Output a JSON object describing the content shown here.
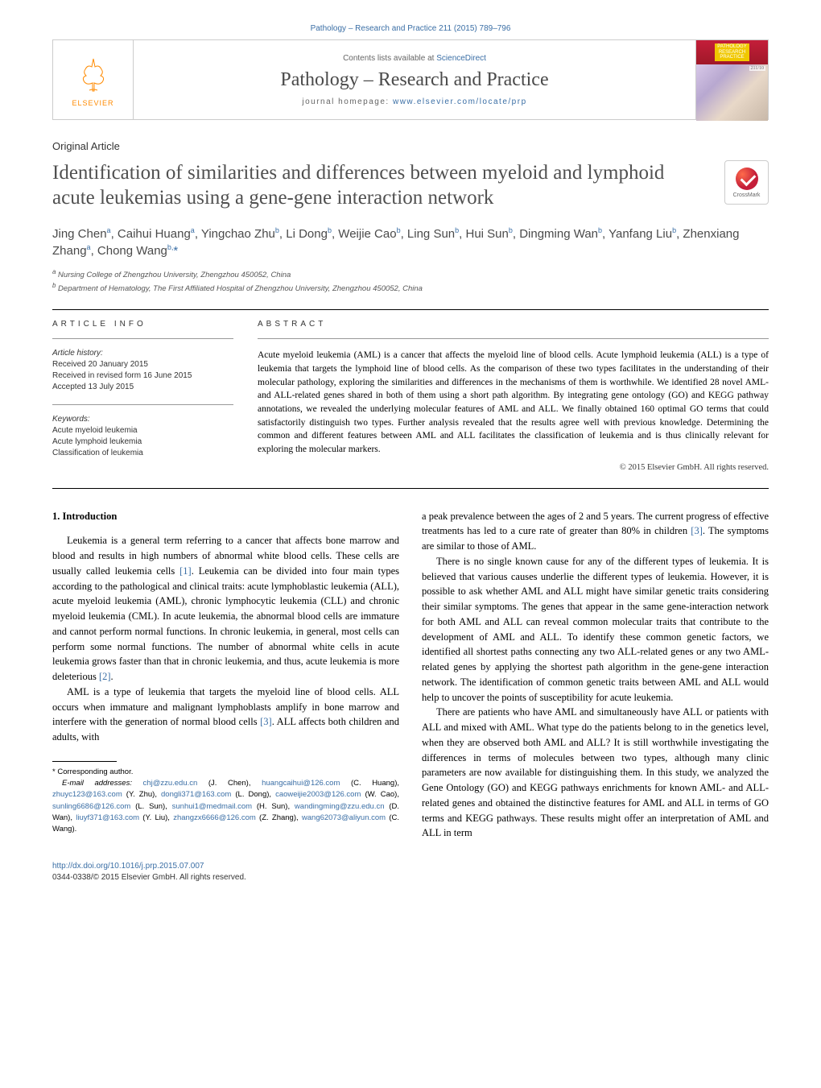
{
  "header": {
    "top_link": "Pathology – Research and Practice 211 (2015) 789–796",
    "contents_prefix": "Contents lists available at ",
    "contents_link": "ScienceDirect",
    "journal_name": "Pathology – Research and Practice",
    "homepage_prefix": "journal homepage: ",
    "homepage_link": "www.elsevier.com/locate/prp",
    "publisher": "ELSEVIER",
    "cover": {
      "label": "PATHOLOGY\nRESEARCH\nPRACTICE",
      "vol": "211/10"
    }
  },
  "article": {
    "type": "Original Article",
    "title": "Identification of similarities and differences between myeloid and lymphoid acute leukemias using a gene-gene interaction network",
    "crossmark": "CrossMark",
    "authors_html": "Jing Chen<sup>a</sup>, Caihui Huang<sup>a</sup>, Yingchao Zhu<sup>b</sup>, Li Dong<sup>b</sup>, Weijie Cao<sup>b</sup>, Ling Sun<sup>b</sup>, Hui Sun<sup>b</sup>, Dingming Wan<sup>b</sup>, Yanfang Liu<sup>b</sup>, Zhenxiang Zhang<sup>a</sup>, Chong Wang<sup>b,</sup><span class='corr'>*</span>",
    "affiliations": [
      "a Nursing College of Zhengzhou University, Zhengzhou 450052, China",
      "b Department of Hematology, The First Affiliated Hospital of Zhengzhou University, Zhengzhou 450052, China"
    ]
  },
  "info": {
    "heading": "ARTICLE INFO",
    "history_label": "Article history:",
    "history": [
      "Received 20 January 2015",
      "Received in revised form 16 June 2015",
      "Accepted 13 July 2015"
    ],
    "keywords_label": "Keywords:",
    "keywords": [
      "Acute myeloid leukemia",
      "Acute lymphoid leukemia",
      "Classification of leukemia"
    ]
  },
  "abstract": {
    "heading": "ABSTRACT",
    "text": "Acute myeloid leukemia (AML) is a cancer that affects the myeloid line of blood cells. Acute lymphoid leukemia (ALL) is a type of leukemia that targets the lymphoid line of blood cells. As the comparison of these two types facilitates in the understanding of their molecular pathology, exploring the similarities and differences in the mechanisms of them is worthwhile. We identified 28 novel AML- and ALL-related genes shared in both of them using a short path algorithm. By integrating gene ontology (GO) and KEGG pathway annotations, we revealed the underlying molecular features of AML and ALL. We finally obtained 160 optimal GO terms that could satisfactorily distinguish two types. Further analysis revealed that the results agree well with previous knowledge. Determining the common and different features between AML and ALL facilitates the classification of leukemia and is thus clinically relevant for exploring the molecular markers.",
    "copyright": "© 2015 Elsevier GmbH. All rights reserved."
  },
  "body": {
    "section_number": "1.",
    "section_title": "Introduction",
    "left_paras": [
      "Leukemia is a general term referring to a cancer that affects bone marrow and blood and results in high numbers of abnormal white blood cells. These cells are usually called leukemia cells [1]. Leukemia can be divided into four main types according to the pathological and clinical traits: acute lymphoblastic leukemia (ALL), acute myeloid leukemia (AML), chronic lymphocytic leukemia (CLL) and chronic myeloid leukemia (CML). In acute leukemia, the abnormal blood cells are immature and cannot perform normal functions. In chronic leukemia, in general, most cells can perform some normal functions. The number of abnormal white cells in acute leukemia grows faster than that in chronic leukemia, and thus, acute leukemia is more deleterious [2].",
      "AML is a type of leukemia that targets the myeloid line of blood cells. ALL occurs when immature and malignant lymphoblasts amplify in bone marrow and interfere with the generation of normal blood cells [3]. ALL affects both children and adults, with"
    ],
    "right_paras": [
      "a peak prevalence between the ages of 2 and 5 years. The current progress of effective treatments has led to a cure rate of greater than 80% in children [3]. The symptoms are similar to those of AML.",
      "There is no single known cause for any of the different types of leukemia. It is believed that various causes underlie the different types of leukemia. However, it is possible to ask whether AML and ALL might have similar genetic traits considering their similar symptoms. The genes that appear in the same gene-interaction network for both AML and ALL can reveal common molecular traits that contribute to the development of AML and ALL. To identify these common genetic factors, we identified all shortest paths connecting any two ALL-related genes or any two AML-related genes by applying the shortest path algorithm in the gene-gene interaction network. The identification of common genetic traits between AML and ALL would help to uncover the points of susceptibility for acute leukemia.",
      "There are patients who have AML and simultaneously have ALL or patients with ALL and mixed with AML. What type do the patients belong to in the genetics level, when they are observed both AML and ALL? It is still worthwhile investigating the differences in terms of molecules between two types, although many clinic parameters are now available for distinguishing them. In this study, we analyzed the Gene Ontology (GO) and KEGG pathways enrichments for known AML- and ALL-related genes and obtained the distinctive features for AML and ALL in terms of GO terms and KEGG pathways. These results might offer an interpretation of AML and ALL in term"
    ]
  },
  "footnotes": {
    "corresponding": "* Corresponding author.",
    "emails_label": "E-mail addresses:",
    "emails": [
      {
        "addr": "chj@zzu.edu.cn",
        "who": "(J. Chen)"
      },
      {
        "addr": "huangcaihui@126.com",
        "who": "(C. Huang)"
      },
      {
        "addr": "zhuyc123@163.com",
        "who": "(Y. Zhu)"
      },
      {
        "addr": "dongli371@163.com",
        "who": "(L. Dong)"
      },
      {
        "addr": "caoweijie2003@126.com",
        "who": "(W. Cao)"
      },
      {
        "addr": "sunling6686@126.com",
        "who": "(L. Sun)"
      },
      {
        "addr": "sunhui1@medmail.com",
        "who": "(H. Sun)"
      },
      {
        "addr": "wandingming@zzu.edu.cn",
        "who": "(D. Wan)"
      },
      {
        "addr": "liuyf371@163.com",
        "who": "(Y. Liu)"
      },
      {
        "addr": "zhangzx6666@126.com",
        "who": "(Z. Zhang)"
      },
      {
        "addr": "wang62073@aliyun.com",
        "who": "(C. Wang)."
      }
    ]
  },
  "footer": {
    "doi": "http://dx.doi.org/10.1016/j.prp.2015.07.007",
    "issn_copy": "0344-0338/© 2015 Elsevier GmbH. All rights reserved."
  },
  "colors": {
    "link": "#3a6ea5",
    "text": "#000000",
    "gray": "#666666",
    "orange": "#ff8a00",
    "red_bar": "#c41e3a"
  }
}
